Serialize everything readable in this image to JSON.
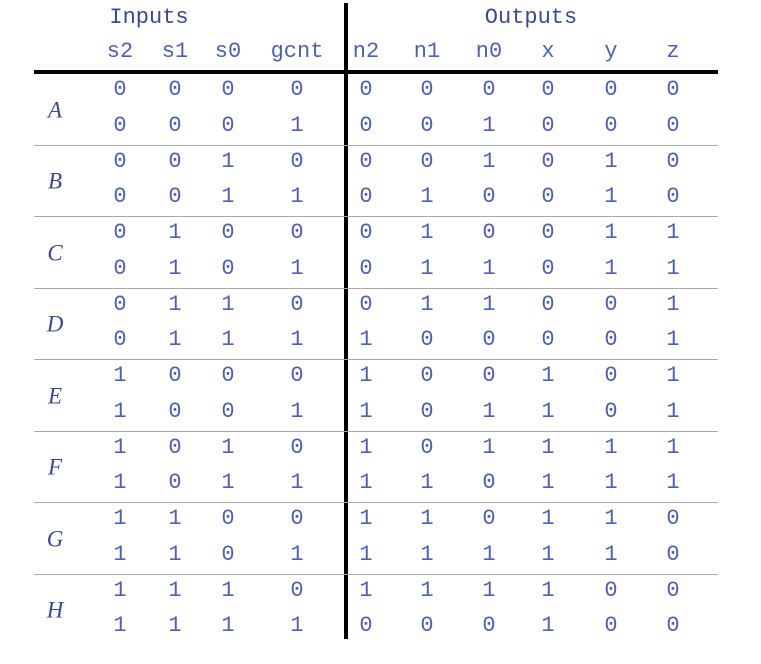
{
  "header": {
    "inputs_label": "Inputs",
    "outputs_label": "Outputs",
    "columns": [
      "s2",
      "s1",
      "s0",
      "gcnt",
      "n2",
      "n1",
      "n0",
      "x",
      "y",
      "z"
    ]
  },
  "states": [
    {
      "label": "A",
      "rows": [
        [
          0,
          0,
          0,
          0,
          0,
          0,
          0,
          0,
          0,
          0
        ],
        [
          0,
          0,
          0,
          1,
          0,
          0,
          1,
          0,
          0,
          0
        ]
      ]
    },
    {
      "label": "B",
      "rows": [
        [
          0,
          0,
          1,
          0,
          0,
          0,
          1,
          0,
          1,
          0
        ],
        [
          0,
          0,
          1,
          1,
          0,
          1,
          0,
          0,
          1,
          0
        ]
      ]
    },
    {
      "label": "C",
      "rows": [
        [
          0,
          1,
          0,
          0,
          0,
          1,
          0,
          0,
          1,
          1
        ],
        [
          0,
          1,
          0,
          1,
          0,
          1,
          1,
          0,
          1,
          1
        ]
      ]
    },
    {
      "label": "D",
      "rows": [
        [
          0,
          1,
          1,
          0,
          0,
          1,
          1,
          0,
          0,
          1
        ],
        [
          0,
          1,
          1,
          1,
          1,
          0,
          0,
          0,
          0,
          1
        ]
      ]
    },
    {
      "label": "E",
      "rows": [
        [
          1,
          0,
          0,
          0,
          1,
          0,
          0,
          1,
          0,
          1
        ],
        [
          1,
          0,
          0,
          1,
          1,
          0,
          1,
          1,
          0,
          1
        ]
      ]
    },
    {
      "label": "F",
      "rows": [
        [
          1,
          0,
          1,
          0,
          1,
          0,
          1,
          1,
          1,
          1
        ],
        [
          1,
          0,
          1,
          1,
          1,
          1,
          0,
          1,
          1,
          1
        ]
      ]
    },
    {
      "label": "G",
      "rows": [
        [
          1,
          1,
          0,
          0,
          1,
          1,
          0,
          1,
          1,
          0
        ],
        [
          1,
          1,
          0,
          1,
          1,
          1,
          1,
          1,
          1,
          0
        ]
      ]
    },
    {
      "label": "H",
      "rows": [
        [
          1,
          1,
          1,
          0,
          1,
          1,
          1,
          1,
          0,
          0
        ],
        [
          1,
          1,
          1,
          1,
          0,
          0,
          0,
          1,
          0,
          0
        ]
      ]
    }
  ]
}
